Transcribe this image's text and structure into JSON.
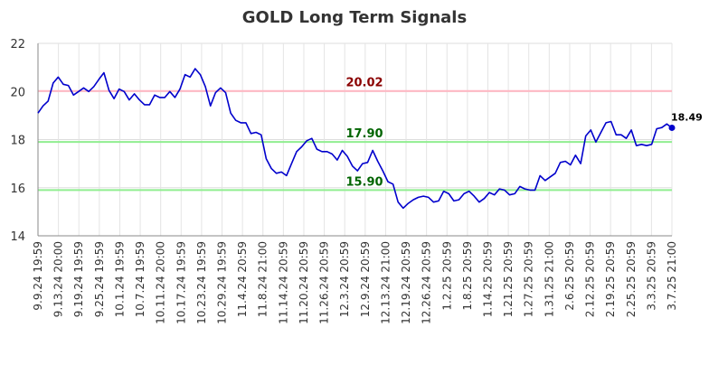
{
  "chart_data": {
    "type": "line",
    "title": "GOLD Long Term Signals",
    "xlabel": "",
    "ylabel": "",
    "ylim": [
      14,
      22
    ],
    "yticks": [
      14,
      16,
      18,
      20,
      22
    ],
    "grid": true,
    "xtick_labels": [
      "9.9.24 19:59",
      "9.13.24 20:00",
      "9.19.24 19:59",
      "9.25.24 19:59",
      "10.1.24 19:59",
      "10.7.24 19:59",
      "10.11.24 20:00",
      "10.17.24 19:59",
      "10.23.24 19:59",
      "10.29.24 19:59",
      "11.4.24 20:59",
      "11.8.24 21:00",
      "11.14.24 20:59",
      "11.20.24 20:59",
      "11.26.24 20:59",
      "12.3.24 20:59",
      "12.9.24 20:59",
      "12.13.24 21:00",
      "12.19.24 20:59",
      "12.26.24 20:59",
      "1.2.25 20:59",
      "1.8.25 20:59",
      "1.14.25 20:59",
      "1.21.25 20:59",
      "1.27.25 20:59",
      "1.31.25 21:00",
      "2.6.25 20:59",
      "2.12.25 20:59",
      "2.19.25 20:59",
      "2.25.25 20:59",
      "3.3.25 20:59",
      "3.7.25 21:00"
    ],
    "series": [
      {
        "color": "#0000cc",
        "values": [
          19.1,
          19.4,
          19.6,
          20.35,
          20.6,
          20.3,
          20.25,
          19.85,
          20.0,
          20.15,
          20.0,
          20.2,
          20.5,
          20.78,
          20.05,
          19.7,
          20.1,
          20.0,
          19.65,
          19.9,
          19.65,
          19.45,
          19.45,
          19.85,
          19.75,
          19.75,
          20.0,
          19.75,
          20.1,
          20.7,
          20.6,
          20.95,
          20.7,
          20.2,
          19.4,
          19.95,
          20.15,
          19.95,
          19.1,
          18.8,
          18.7,
          18.7,
          18.25,
          18.3,
          18.2,
          17.2,
          16.8,
          16.6,
          16.65,
          16.5,
          17.0,
          17.5,
          17.7,
          17.95,
          18.05,
          17.6,
          17.5,
          17.5,
          17.4,
          17.15,
          17.55,
          17.3,
          16.9,
          16.7,
          17.0,
          17.05,
          17.55,
          17.1,
          16.7,
          16.25,
          16.15,
          15.4,
          15.15,
          15.35,
          15.5,
          15.6,
          15.65,
          15.6,
          15.4,
          15.45,
          15.85,
          15.75,
          15.45,
          15.5,
          15.75,
          15.85,
          15.65,
          15.4,
          15.55,
          15.8,
          15.7,
          15.95,
          15.9,
          15.7,
          15.75,
          16.05,
          15.95,
          15.9,
          15.9,
          16.5,
          16.3,
          16.45,
          16.6,
          17.05,
          17.1,
          16.95,
          17.35,
          17.0,
          18.15,
          18.4,
          17.9,
          18.3,
          18.7,
          18.75,
          18.2,
          18.2,
          18.05,
          18.4,
          17.75,
          17.8,
          17.75,
          17.8,
          18.45,
          18.5,
          18.65,
          18.49
        ]
      }
    ],
    "hlines": [
      {
        "value": 20.02,
        "label": "20.02",
        "line_color": "#ffb6c1",
        "label_color": "#8b0000"
      },
      {
        "value": 17.9,
        "label": "17.90",
        "line_color": "#90ee90",
        "label_color": "#006400"
      },
      {
        "value": 15.9,
        "label": "15.90",
        "line_color": "#90ee90",
        "label_color": "#006400"
      }
    ],
    "last_value_label": "18.49"
  }
}
